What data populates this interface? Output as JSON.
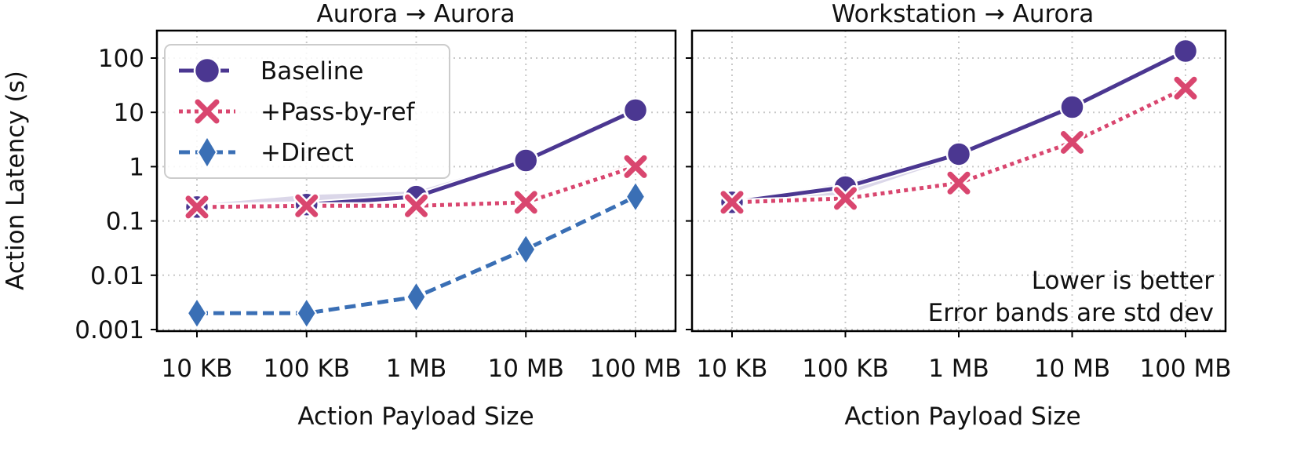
{
  "chart_data": [
    {
      "type": "line",
      "title": "Aurora → Aurora",
      "xlabel": "Action Payload Size",
      "ylabel": "Action Latency (s)",
      "yscale": "log",
      "ylim": [
        0.001,
        200
      ],
      "grid": true,
      "categories": [
        "10 KB",
        "100 KB",
        "1 MB",
        "10 MB",
        "100 MB"
      ],
      "yticks": [
        "0.001",
        "0.01",
        "0.1",
        "1",
        "10",
        "100"
      ],
      "legend_position": "top-left",
      "series": [
        {
          "name": "Baseline",
          "values": [
            0.18,
            0.2,
            0.28,
            1.3,
            11
          ],
          "band_lo": [
            0.17,
            0.17,
            0.25,
            1.2,
            10
          ],
          "band_hi": [
            0.2,
            0.3,
            0.35,
            1.4,
            12
          ]
        },
        {
          "name": "+Pass-by-ref",
          "values": [
            0.18,
            0.19,
            0.19,
            0.22,
            1.0
          ],
          "band_lo": [
            0.17,
            0.17,
            0.17,
            0.2,
            0.85
          ],
          "band_hi": [
            0.2,
            0.22,
            0.21,
            0.25,
            1.2
          ]
        },
        {
          "name": "+Direct",
          "values": [
            0.002,
            0.002,
            0.004,
            0.03,
            0.28
          ],
          "band_lo": [
            0.0018,
            0.0018,
            0.0035,
            0.026,
            0.25
          ],
          "band_hi": [
            0.0023,
            0.0023,
            0.0046,
            0.034,
            0.31
          ]
        }
      ]
    },
    {
      "type": "line",
      "title": "Workstation → Aurora",
      "xlabel": "Action Payload Size",
      "yscale": "log",
      "ylim": [
        0.001,
        200
      ],
      "grid": true,
      "categories": [
        "10 KB",
        "100 KB",
        "1 MB",
        "10 MB",
        "100 MB"
      ],
      "annotations": [
        "Lower is better",
        "Error bands are std dev"
      ],
      "series": [
        {
          "name": "Baseline",
          "values": [
            0.22,
            0.42,
            1.7,
            12.5,
            135
          ],
          "band_lo": [
            0.2,
            0.3,
            1.5,
            11.5,
            125
          ],
          "band_hi": [
            0.24,
            0.5,
            1.9,
            13.5,
            145
          ]
        },
        {
          "name": "+Pass-by-ref",
          "values": [
            0.22,
            0.26,
            0.5,
            2.8,
            28
          ],
          "band_lo": [
            0.2,
            0.23,
            0.45,
            2.5,
            25
          ],
          "band_hi": [
            0.24,
            0.3,
            0.56,
            3.2,
            31
          ]
        }
      ]
    }
  ],
  "colors": {
    "Baseline": "#4b3791",
    "+Pass-by-ref": "#d9466f",
    "+Direct": "#3a6fb5",
    "grid": "#c8c8c8"
  },
  "marker_icons": {
    "Baseline": "circle-marker",
    "+Pass-by-ref": "x-marker",
    "+Direct": "diamond-marker"
  }
}
